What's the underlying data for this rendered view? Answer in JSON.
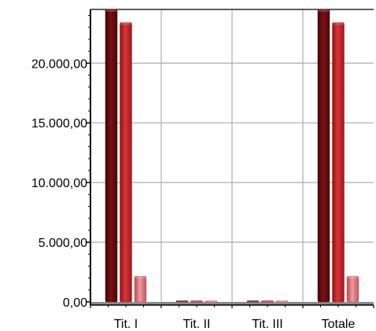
{
  "chart_data": {
    "type": "bar",
    "title": "",
    "xlabel": "",
    "ylabel": "",
    "categories": [
      "Tit. I",
      "Tit. II",
      "Tit. III",
      "Totale"
    ],
    "series": [
      {
        "values": [
          24500,
          60,
          60,
          24500
        ],
        "color": "#5a0a0c"
      },
      {
        "values": [
          23400,
          60,
          60,
          23400
        ],
        "color": "#b81e22"
      },
      {
        "values": [
          2150,
          20,
          20,
          2150
        ],
        "color": "#d9737a"
      }
    ],
    "ylim": [
      0,
      24500
    ],
    "yticks": [
      0,
      5000,
      10000,
      15000,
      20000
    ],
    "ytick_labels": [
      "0,00",
      "5.000,00",
      "10.000,00",
      "15.000,00",
      "20.000,00"
    ],
    "grid": true,
    "legend": "none"
  }
}
